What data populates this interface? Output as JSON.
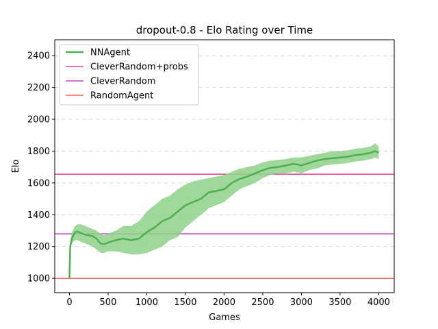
{
  "chart_data": {
    "type": "line",
    "title": "dropout-0.8 - Elo Rating over Time",
    "xlabel": "Games",
    "ylabel": "Elo",
    "xlim": [
      -190,
      4200
    ],
    "ylim": [
      910,
      2500
    ],
    "xticks": [
      0,
      500,
      1000,
      1500,
      2000,
      2500,
      3000,
      3500,
      4000
    ],
    "yticks": [
      1000,
      1200,
      1400,
      1600,
      1800,
      2000,
      2200,
      2400
    ],
    "grid": "y-dashed",
    "legend_position": "top-left",
    "series": [
      {
        "name": "NNAgent",
        "type": "line-with-band",
        "color": "#4caf50",
        "band_color": "#8fd18a",
        "x": [
          0,
          10,
          25,
          50,
          75,
          100,
          150,
          200,
          250,
          300,
          350,
          400,
          450,
          500,
          600,
          700,
          800,
          900,
          1000,
          1100,
          1200,
          1300,
          1400,
          1500,
          1600,
          1700,
          1800,
          1900,
          2000,
          2100,
          2200,
          2300,
          2400,
          2500,
          2600,
          2700,
          2800,
          2900,
          3000,
          3100,
          3200,
          3300,
          3400,
          3500,
          3600,
          3700,
          3800,
          3900,
          3950,
          4000
        ],
        "y": [
          1000,
          1200,
          1240,
          1270,
          1290,
          1295,
          1285,
          1275,
          1270,
          1265,
          1250,
          1220,
          1215,
          1225,
          1240,
          1250,
          1240,
          1250,
          1290,
          1320,
          1360,
          1380,
          1420,
          1460,
          1480,
          1500,
          1540,
          1550,
          1560,
          1600,
          1625,
          1640,
          1660,
          1680,
          1695,
          1700,
          1710,
          1720,
          1710,
          1725,
          1740,
          1750,
          1755,
          1760,
          1765,
          1775,
          1780,
          1790,
          1800,
          1790
        ],
        "lower": [
          1000,
          1180,
          1210,
          1230,
          1240,
          1240,
          1230,
          1220,
          1210,
          1200,
          1180,
          1160,
          1160,
          1170,
          1170,
          1160,
          1150,
          1150,
          1160,
          1180,
          1200,
          1240,
          1260,
          1320,
          1360,
          1400,
          1440,
          1460,
          1480,
          1520,
          1560,
          1580,
          1600,
          1630,
          1650,
          1660,
          1660,
          1670,
          1660,
          1680,
          1690,
          1710,
          1715,
          1720,
          1725,
          1735,
          1740,
          1750,
          1760,
          1750
        ],
        "upper": [
          1000,
          1220,
          1280,
          1310,
          1330,
          1340,
          1340,
          1330,
          1320,
          1310,
          1300,
          1280,
          1270,
          1280,
          1300,
          1330,
          1330,
          1360,
          1420,
          1460,
          1500,
          1520,
          1560,
          1590,
          1610,
          1620,
          1630,
          1640,
          1650,
          1670,
          1690,
          1700,
          1710,
          1730,
          1740,
          1745,
          1750,
          1760,
          1760,
          1770,
          1780,
          1790,
          1800,
          1800,
          1805,
          1815,
          1820,
          1830,
          1850,
          1830
        ]
      },
      {
        "name": "CleverRandom+probs",
        "type": "hline",
        "y": 1655,
        "color": "#e0147e"
      },
      {
        "name": "CleverRandom",
        "type": "hline",
        "y": 1280,
        "color": "#b21ab8"
      },
      {
        "name": "RandomAgent",
        "type": "hline",
        "y": 1000,
        "color": "#f0412c"
      }
    ]
  }
}
